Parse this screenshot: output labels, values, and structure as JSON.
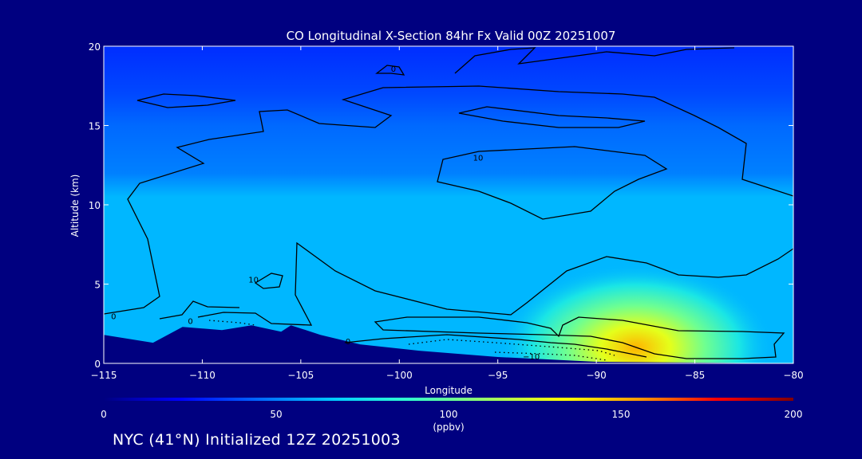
{
  "chart_data": {
    "type": "heatmap",
    "title": "CO Longitudinal X-Section 84hr  Fx Valid 00Z 20251007",
    "xlabel": "Longitude",
    "ylabel": "Altitude (km)",
    "xlim": [
      -115,
      -80
    ],
    "ylim": [
      0,
      20
    ],
    "x_ticks": [
      -115,
      -110,
      -105,
      -100,
      -95,
      -90,
      -85,
      -80
    ],
    "x_tick_labels": [
      "−115",
      "−110",
      "−105",
      "−100",
      "−95",
      "−90",
      "−85",
      "−80"
    ],
    "y_ticks": [
      0,
      5,
      10,
      15,
      20
    ],
    "y_tick_labels": [
      "0",
      "5",
      "10",
      "15",
      "20"
    ],
    "field": {
      "units": "ppbv",
      "background_profile": [
        {
          "alt": 0,
          "value": 62
        },
        {
          "alt": 10.5,
          "value": 62
        },
        {
          "alt": 12,
          "value": 50
        },
        {
          "alt": 15,
          "value": 45
        },
        {
          "alt": 17,
          "value": 38
        },
        {
          "alt": 20,
          "value": 32
        }
      ],
      "plume": {
        "lon": -88,
        "alt": 1.0,
        "peak_value": 150,
        "lon_spread": 3.2,
        "alt_spread": 2.2
      }
    },
    "terrain": [
      {
        "lon": -115,
        "alt": 1.8
      },
      {
        "lon": -112.5,
        "alt": 1.3
      },
      {
        "lon": -111,
        "alt": 2.3
      },
      {
        "lon": -109,
        "alt": 2.1
      },
      {
        "lon": -107.5,
        "alt": 2.4
      },
      {
        "lon": -106,
        "alt": 2.0
      },
      {
        "lon": -105.5,
        "alt": 2.4
      },
      {
        "lon": -104,
        "alt": 1.8
      },
      {
        "lon": -102,
        "alt": 1.2
      },
      {
        "lon": -99,
        "alt": 0.8
      },
      {
        "lon": -95,
        "alt": 0.4
      },
      {
        "lon": -90,
        "alt": 0.1
      },
      {
        "lon": -80,
        "alt": 0.0
      }
    ],
    "contour_labels": [
      {
        "text": "0",
        "lon": -114.5,
        "alt": 3.0
      },
      {
        "text": "0",
        "lon": -110.6,
        "alt": 2.7
      },
      {
        "text": "10",
        "lon": -107.4,
        "alt": 5.3
      },
      {
        "text": "0",
        "lon": -102.6,
        "alt": 1.4
      },
      {
        "text": "0",
        "lon": -100.3,
        "alt": 18.6
      },
      {
        "text": "10",
        "lon": -96.0,
        "alt": 13.0
      },
      {
        "text": "−10",
        "lon": -93.3,
        "alt": 0.45
      }
    ],
    "colorbar": {
      "min": 0,
      "max": 200,
      "ticks": [
        0,
        50,
        100,
        150,
        200
      ],
      "tick_labels": [
        "0",
        "50",
        "100",
        "150",
        "200"
      ],
      "units_label": "(ppbv)",
      "colors": [
        "#000080",
        "#0000ff",
        "#0066ff",
        "#00ccff",
        "#33ffcc",
        "#99ff66",
        "#ffff00",
        "#ff9900",
        "#ff0000",
        "#800000"
      ]
    }
  },
  "footer_text": "NYC (41°N) Initialized 12Z 20251003",
  "colors": {
    "background": "#000080",
    "text": "#ffffff",
    "contour": "#000000"
  }
}
